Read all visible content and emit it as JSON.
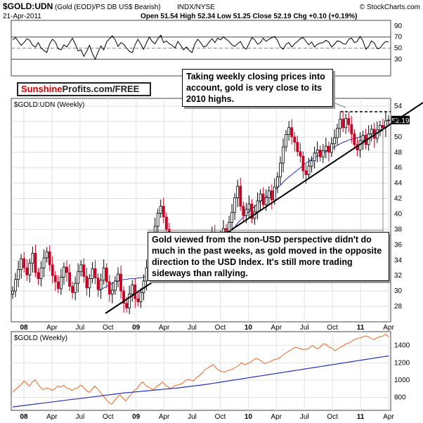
{
  "header": {
    "symbol": "$GOLD:UDN",
    "description": "(Gold (EOD)/PS DB US$ Bearish)",
    "exchange": "INDX/NYSE",
    "copyright": "© StockCharts.com",
    "date": "21-Apr-2011",
    "quote": "Open 51.54  High 52.34  Low 51.25  Close 52.19  Chg +0.10 (+0.19%)"
  },
  "brand": {
    "part1": "Sunshine",
    "part2": "Profits.com/FREE"
  },
  "annotations": {
    "top_note": "Taking weekly closing prices into account, gold is very close to its 2010 highs.",
    "bottom_note": "Gold viewed from the non-USD perspective didn't do much in the past weeks, as gold moved in the opposite direction to the USD Index. It's still more trading sideways than rallying."
  },
  "colors": {
    "up_candle": "#000000",
    "down_candle": "#cc0022",
    "moving_average": "#2233bb",
    "gold_line": "#ee6622",
    "rsi_fill": "#2e7d32"
  },
  "chart_data": [
    {
      "type": "line",
      "panel": "RSI",
      "ylim": [
        0,
        100
      ],
      "yticks": [
        "90",
        "70",
        "50",
        "30"
      ],
      "reference_lines": [
        70,
        50,
        30
      ],
      "series": [
        {
          "values": [
            65,
            69,
            62,
            55,
            60,
            67,
            64,
            55,
            52,
            60,
            50,
            46,
            42,
            58,
            66,
            61,
            49,
            47,
            56,
            52,
            60,
            68,
            57,
            45,
            47,
            35,
            44,
            55,
            40,
            30,
            43,
            54,
            47,
            61,
            67,
            72,
            65,
            53,
            60,
            57,
            50,
            44,
            42,
            56,
            66,
            57,
            48,
            60,
            70,
            62,
            58,
            67,
            73,
            60,
            63,
            58,
            55,
            50,
            62,
            55,
            47,
            52,
            46,
            42,
            58,
            66,
            60,
            52,
            54,
            61,
            67,
            60,
            68,
            65,
            70,
            66,
            62,
            56,
            53,
            58,
            62,
            52,
            48,
            58,
            69,
            65,
            57,
            60,
            68,
            62,
            66,
            69,
            71,
            64,
            52,
            48,
            57,
            60,
            52,
            58,
            62,
            67,
            69,
            62,
            56,
            61,
            52,
            57,
            59,
            60,
            64,
            61,
            52,
            57,
            63,
            62,
            58,
            57,
            66,
            68,
            60,
            62,
            71,
            63,
            48,
            53,
            63,
            59,
            49,
            50,
            57,
            62,
            61
          ]
        }
      ]
    },
    {
      "type": "candlestick",
      "panel": "$GOLD:UDN (Weekly)",
      "ylim": [
        26,
        55
      ],
      "yticks": [
        "54",
        "52",
        "50",
        "48",
        "46",
        "44",
        "42",
        "40",
        "38",
        "36",
        "34",
        "32",
        "30",
        "28"
      ],
      "x_ticks": [
        "08",
        "Apr",
        "Jul",
        "Oct",
        "09",
        "Apr",
        "Jul",
        "Oct",
        "10",
        "Apr",
        "Jul",
        "Oct",
        "11",
        "Apr"
      ],
      "last_close": 52.19,
      "closes": [
        30.0,
        31.5,
        32.8,
        34.2,
        33.0,
        32.1,
        33.6,
        34.9,
        32.4,
        31.6,
        33.0,
        34.3,
        35.1,
        33.4,
        32.0,
        31.2,
        30.3,
        31.8,
        33.1,
        32.4,
        30.6,
        29.8,
        31.0,
        32.5,
        33.4,
        31.9,
        30.4,
        31.6,
        32.9,
        31.7,
        30.2,
        31.4,
        33.0,
        31.2,
        29.6,
        30.1,
        31.3,
        32.2,
        30.0,
        28.4,
        27.8,
        29.6,
        30.8,
        29.0,
        28.6,
        29.8,
        31.3,
        33.0,
        34.6,
        36.2,
        38.4,
        40.1,
        41.0,
        39.6,
        38.0,
        36.1,
        34.0,
        33.2,
        34.4,
        33.1,
        33.8,
        35.1,
        36.4,
        35.7,
        35.3,
        34.6,
        35.2,
        36.0,
        35.0,
        36.3,
        37.5,
        36.2,
        35.7,
        37.0,
        38.1,
        37.6,
        38.9,
        40.2,
        42.1,
        43.6,
        41.0,
        39.8,
        40.6,
        41.3,
        39.4,
        40.3,
        41.7,
        42.6,
        41.2,
        42.1,
        43.0,
        41.8,
        43.5,
        44.8,
        46.6,
        48.7,
        50.3,
        51.2,
        50.0,
        49.3,
        48.1,
        47.5,
        45.6,
        45.1,
        46.2,
        46.9,
        47.9,
        48.3,
        47.4,
        48.2,
        48.8,
        48.0,
        49.1,
        49.9,
        51.1,
        52.3,
        51.2,
        52.4,
        51.6,
        50.4,
        49.0,
        48.3,
        49.5,
        50.2,
        49.0,
        50.4,
        51.0,
        49.8,
        50.9,
        51.5,
        51.2,
        52.1,
        52.19
      ],
      "moving_average": [
        null,
        null,
        null,
        null,
        null,
        null,
        null,
        null,
        null,
        null,
        null,
        null,
        null,
        null,
        null,
        null,
        null,
        null,
        null,
        null,
        null,
        null,
        null,
        null,
        null,
        null,
        null,
        null,
        null,
        null,
        30.0,
        30.2,
        30.4,
        30.6,
        30.8,
        31.0,
        31.1,
        31.3,
        31.4,
        31.5,
        31.5,
        31.6,
        31.6,
        31.6,
        31.7,
        31.7,
        31.8,
        31.9,
        32.0,
        32.2,
        32.5,
        32.8,
        33.1,
        33.4,
        33.6,
        33.8,
        33.9,
        34.0,
        34.1,
        34.2,
        34.3,
        34.4,
        34.6,
        34.7,
        34.8,
        34.9,
        35.1,
        35.2,
        35.3,
        35.5,
        35.7,
        35.9,
        36.2,
        36.5,
        36.8,
        37.1,
        37.5,
        37.9,
        38.3,
        38.8,
        39.2,
        39.6,
        40.0,
        40.3,
        40.6,
        41.0,
        41.3,
        41.6,
        41.9,
        42.2,
        42.5,
        42.8,
        43.1,
        43.4,
        43.7,
        44.1,
        44.5,
        44.8,
        45.1,
        45.4,
        45.7,
        46.0,
        46.3,
        46.6,
        46.8,
        47.1,
        47.3,
        47.5,
        47.7,
        47.9,
        48.1,
        48.3,
        48.5,
        48.7,
        48.9,
        49.1,
        49.3,
        49.4,
        49.6,
        49.7,
        49.8,
        49.9,
        50.0,
        50.1,
        50.2,
        50.3,
        50.4,
        50.5,
        50.6,
        50.7,
        50.8
      ]
    },
    {
      "type": "line",
      "panel": "$GOLD (Weekly)",
      "ylim": [
        650,
        1560
      ],
      "yticks": [
        "1400",
        "1200",
        "1000",
        "800"
      ],
      "x_ticks": [
        "08",
        "Apr",
        "Jul",
        "Oct",
        "09",
        "Apr",
        "Jul",
        "Oct",
        "10",
        "Apr",
        "Jul",
        "Oct",
        "11",
        "Apr"
      ],
      "series": [
        {
          "values": [
            860,
            890,
            920,
            950,
            990,
            960,
            930,
            980,
            1000,
            950,
            910,
            890,
            910,
            900,
            880,
            900,
            930,
            920,
            940,
            910,
            900,
            880,
            900,
            910,
            940,
            920,
            880,
            860,
            890,
            930,
            900,
            860,
            820,
            780,
            740,
            720,
            760,
            800,
            830,
            790,
            760,
            800,
            840,
            880,
            900,
            950,
            980,
            940,
            920,
            900,
            890,
            930,
            950,
            980,
            940,
            920,
            900,
            930,
            940,
            950,
            960,
            990,
            1010,
            1000,
            990,
            1030,
            1050,
            1080,
            1120,
            1140,
            1160,
            1180,
            1140,
            1110,
            1100,
            1090,
            1110,
            1120,
            1130,
            1150,
            1170,
            1200,
            1180,
            1190,
            1200,
            1230,
            1250,
            1240,
            1220,
            1190,
            1200,
            1210,
            1230,
            1240,
            1250,
            1270,
            1300,
            1320,
            1340,
            1360,
            1380,
            1370,
            1360,
            1350,
            1360,
            1370,
            1400,
            1380,
            1360,
            1390,
            1420,
            1410,
            1380,
            1370,
            1340,
            1360,
            1380,
            1400,
            1420,
            1430,
            1450,
            1470,
            1480,
            1490,
            1500,
            1510,
            1500,
            1480,
            1470,
            1490,
            1500,
            1510,
            1530,
            1500
          ]
        },
        {
          "values": [
            690,
            694,
            698,
            702,
            706,
            710,
            714,
            718,
            722,
            726,
            730,
            734,
            738,
            742,
            746,
            750,
            754,
            758,
            762,
            766,
            770,
            774,
            778,
            782,
            786,
            790,
            794,
            798,
            802,
            806,
            810,
            814,
            818,
            822,
            826,
            830,
            834,
            838,
            842,
            846,
            850,
            853,
            856,
            859,
            862,
            865,
            868,
            871,
            874,
            877,
            880,
            883,
            886,
            889,
            892,
            895,
            898,
            901,
            904,
            907,
            910,
            914,
            918,
            922,
            926,
            930,
            934,
            938,
            942,
            946,
            950,
            955,
            960,
            965,
            970,
            975,
            980,
            985,
            990,
            995,
            1000,
            1005,
            1010,
            1015,
            1020,
            1025,
            1030,
            1035,
            1040,
            1045,
            1050,
            1055,
            1060,
            1065,
            1070,
            1075,
            1080,
            1085,
            1090,
            1095,
            1100,
            1105,
            1110,
            1115,
            1120,
            1125,
            1130,
            1135,
            1140,
            1145,
            1150,
            1155,
            1160,
            1165,
            1170,
            1175,
            1180,
            1185,
            1190,
            1195,
            1200,
            1205,
            1210,
            1215,
            1220,
            1225,
            1230,
            1235,
            1240,
            1245,
            1250,
            1255,
            1260,
            1265,
            1270,
            1275,
            1280
          ]
        }
      ]
    }
  ]
}
